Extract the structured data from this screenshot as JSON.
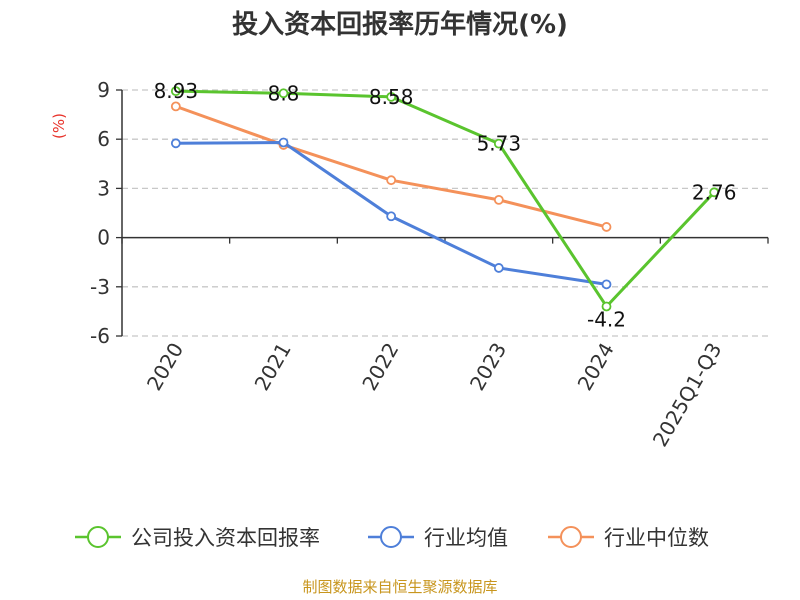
{
  "chart_data": {
    "type": "line",
    "title": "投入资本回报率历年情况(%)",
    "ylabel": "(%)",
    "xlabel": "",
    "categories": [
      "2020",
      "2021",
      "2022",
      "2023",
      "2024",
      "2025Q1-Q3"
    ],
    "ylim": [
      -6,
      9
    ],
    "yticks": [
      9,
      6,
      3,
      0,
      -3,
      -6
    ],
    "grid": true,
    "legend_position": "bottom",
    "series": [
      {
        "name": "公司投入资本回报率",
        "color": "#5ac42e",
        "values": [
          8.93,
          8.8,
          8.58,
          5.73,
          -4.2,
          2.76
        ],
        "labels": [
          "8.93",
          "8.8",
          "8.58",
          "5.73",
          "-4.2",
          "2.76"
        ]
      },
      {
        "name": "行业均值",
        "color": "#4e7fd9",
        "values": [
          5.75,
          5.8,
          1.3,
          -1.85,
          -2.85,
          null
        ]
      },
      {
        "name": "行业中位数",
        "color": "#f4915a",
        "values": [
          8.0,
          5.65,
          3.5,
          2.3,
          0.65,
          null
        ]
      }
    ],
    "source": "制图数据来自恒生聚源数据库"
  }
}
